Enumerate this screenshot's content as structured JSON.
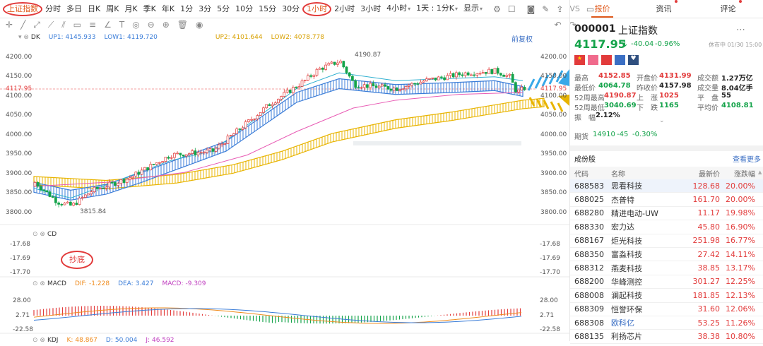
{
  "toolbar": {
    "index_tab": "上证指数",
    "periods": [
      "分时",
      "多日",
      "日K",
      "周K",
      "月K",
      "季K",
      "年K",
      "1分",
      "3分",
      "5分",
      "10分",
      "15分",
      "30分",
      "1小时",
      "2小时",
      "3小时",
      "4小时",
      "1天 : 1分K"
    ],
    "active_period": "1小时",
    "display": "显示",
    "vs": "VS"
  },
  "chart_legend": {
    "name": "DK",
    "up1_label": "UP1:",
    "up1": "4145.933",
    "low1_label": "LOW1:",
    "low1": "4119.720",
    "up2_label": "UP2:",
    "up2": "4101.644",
    "low2_label": "LOW2:",
    "low2": "4078.778",
    "restore": "前复权"
  },
  "price_axis": {
    "left": [
      "4200.00",
      "4150.00",
      "4117.95",
      "4100.00",
      "4050.00",
      "4000.00",
      "3950.00",
      "3900.00",
      "3850.00",
      "3800.00"
    ],
    "right": [
      "4200.00",
      "4150.00",
      "4117.95",
      "4100.00",
      "4050.00",
      "4000.00",
      "3950.00",
      "3900.00",
      "3850.00",
      "3800.00"
    ]
  },
  "annotations": {
    "high": "4190.87",
    "low": "3815.84",
    "chaodi": "抄底"
  },
  "cd": {
    "name": "CD",
    "left": [
      "-17.68",
      "-17.69",
      "-17.70"
    ],
    "right": [
      "-17.68",
      "-17.69",
      "-17.70"
    ]
  },
  "macd": {
    "name": "MACD",
    "dif_label": "DIF:",
    "dif": "-1.228",
    "dea_label": "DEA:",
    "dea": "3.427",
    "macd_label": "MACD:",
    "macd": "-9.309",
    "left": [
      "28.00",
      "2.71",
      "-22.58"
    ],
    "right": [
      "28.00",
      "2.71",
      "-22.58"
    ]
  },
  "kdj": {
    "name": "KDJ",
    "k_label": "K:",
    "k": "48.867",
    "d_label": "D:",
    "d": "50.004",
    "j_label": "J:",
    "j": "46.592"
  },
  "tabs": [
    "报价",
    "资讯",
    "评论"
  ],
  "quote": {
    "code": "000001",
    "name": "上证指数",
    "price": "4117.95",
    "arrow": "↓",
    "change": "-40.04",
    "pct": "-0.96%",
    "status": "休市中 01/30 15:00",
    "high_l": "最高",
    "high": "4152.85",
    "open_l": "开盘价",
    "open": "4131.99",
    "amt_l": "成交额",
    "amt": "1.27万亿",
    "low_l": "最低价",
    "low": "4064.78",
    "prev_l": "昨收价",
    "prev": "4157.98",
    "vol_l": "成交量",
    "vol": "8.04亿手",
    "w52h_l": "52周最高",
    "w52h": "4190.87",
    "up_l": "上　涨",
    "up": "1025",
    "flat_l": "平　盘",
    "flat": "55",
    "w52l_l": "52周最低",
    "w52l": "3040.69",
    "down_l": "下　跌",
    "down": "1165",
    "avg_l": "平均价",
    "avg": "4108.81",
    "amp_l": "振　幅",
    "amp": "2.12%",
    "fut_l": "期货",
    "fut": "14910",
    "fut_chg": "-45",
    "fut_pct": "-0.30%"
  },
  "constituents": {
    "title": "成份股",
    "more": "查看更多",
    "headers": [
      "代码",
      "名称",
      "最新价",
      "涨跌幅"
    ],
    "rows": [
      [
        "688583",
        "思看科技",
        "128.68",
        "20.00%"
      ],
      [
        "688025",
        "杰普特",
        "161.70",
        "20.00%"
      ],
      [
        "688280",
        "精进电动-UW",
        "11.17",
        "19.98%"
      ],
      [
        "688330",
        "宏力达",
        "45.80",
        "16.90%"
      ],
      [
        "688167",
        "炬光科技",
        "251.98",
        "16.77%"
      ],
      [
        "688350",
        "富淼科技",
        "27.42",
        "14.11%"
      ],
      [
        "688312",
        "燕麦科技",
        "38.85",
        "13.17%"
      ],
      [
        "688200",
        "华峰测控",
        "301.27",
        "12.25%"
      ],
      [
        "688008",
        "澜起科技",
        "181.85",
        "12.13%"
      ],
      [
        "688309",
        "恒誉环保",
        "31.60",
        "12.06%"
      ],
      [
        "688308",
        "欧科亿",
        "53.25",
        "11.26%"
      ],
      [
        "688135",
        "利扬芯片",
        "38.38",
        "10.80%"
      ]
    ]
  }
}
